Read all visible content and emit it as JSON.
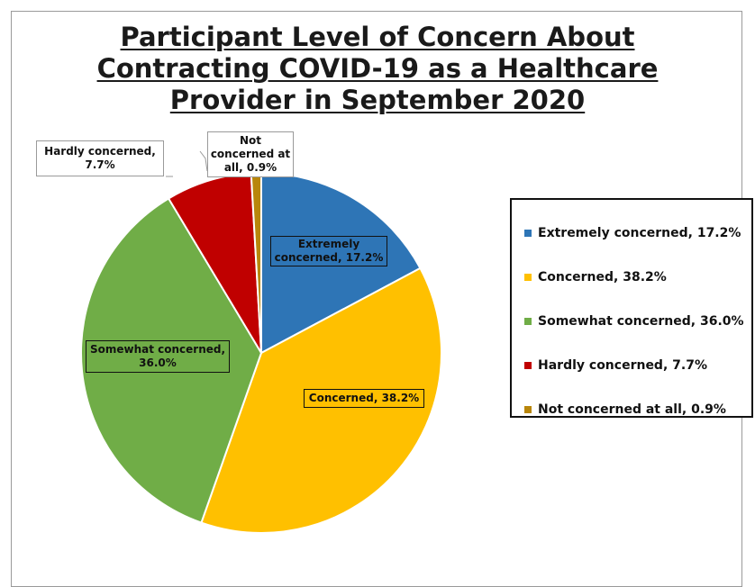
{
  "chart_data": {
    "type": "pie",
    "title_lines": [
      "Participant Level of Concern About",
      "Contracting COVID-19 as a Healthcare",
      "Provider in September 2020"
    ],
    "unit": "%",
    "slices": [
      {
        "name": "Extremely concerned",
        "value": 17.2,
        "color": "#2e75b6",
        "legend_text": "Extremely concerned, 17.2%",
        "label_lines": [
          "Extremely",
          "concerned, 17.2%"
        ]
      },
      {
        "name": "Concerned",
        "value": 38.2,
        "color": "#ffc000",
        "legend_text": "Concerned, 38.2%",
        "label_lines": [
          "Concerned, 38.2%"
        ]
      },
      {
        "name": "Somewhat concerned",
        "value": 36.0,
        "color": "#70ad47",
        "legend_text": "Somewhat concerned, 36.0%",
        "label_lines": [
          "Somewhat concerned,",
          "36.0%"
        ]
      },
      {
        "name": "Hardly concerned",
        "value": 7.7,
        "color": "#c00000",
        "legend_text": "Hardly concerned, 7.7%",
        "label_lines": [
          "Hardly concerned,",
          "7.7%"
        ]
      },
      {
        "name": "Not concerned at all",
        "value": 0.9,
        "color": "#b8860b",
        "legend_text": "Not concerned at all, 0.9%",
        "label_lines": [
          "Not",
          "concerned at",
          "all, 0.9%"
        ]
      }
    ],
    "start_angle_deg": 0,
    "direction": "clockwise",
    "legend_position": "right"
  }
}
